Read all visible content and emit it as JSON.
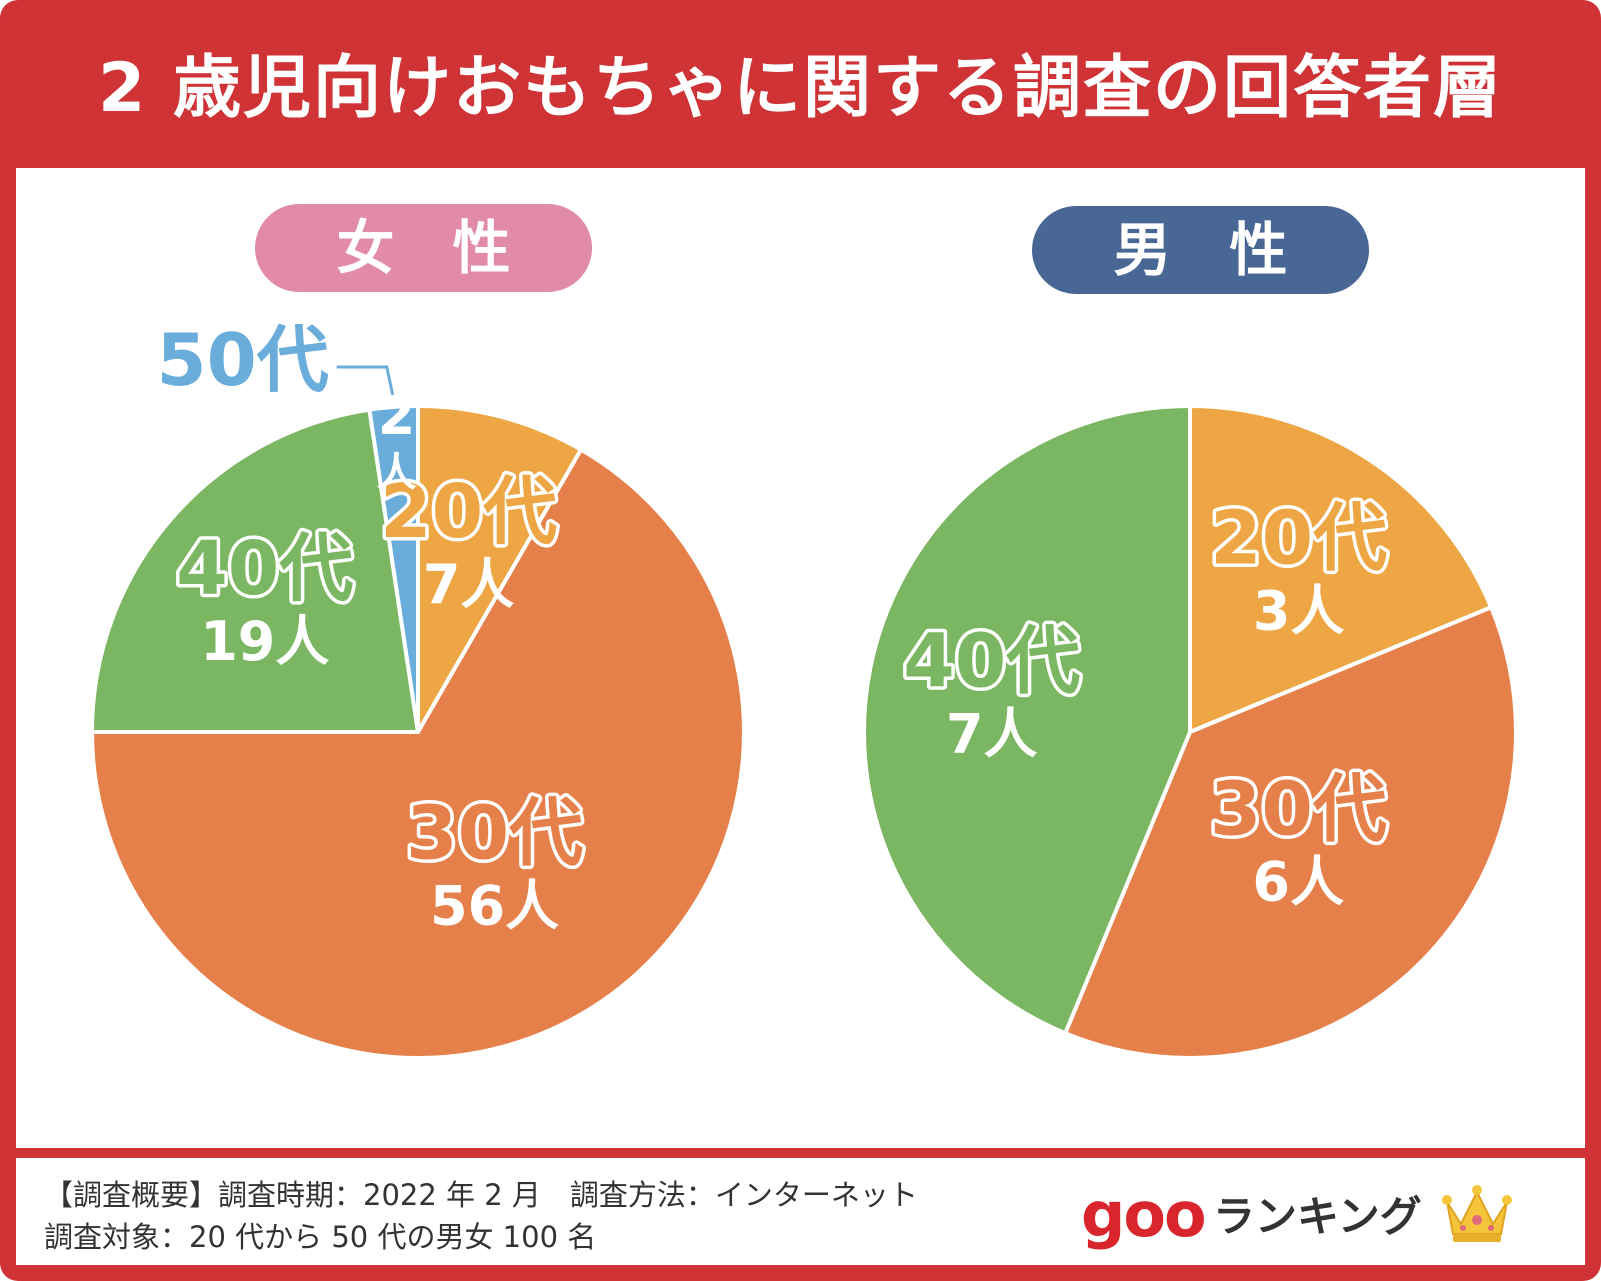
{
  "title": "2 歳児向けおもちゃに関する調査の回答者層",
  "colors": {
    "frame": "#cf3336",
    "age20": "#eda643",
    "age30": "#e5804a",
    "age40": "#7bb662",
    "age50": "#6aaddb",
    "female_pill": "#e28aa9",
    "male_pill": "#486795"
  },
  "chart_data": [
    {
      "type": "pie",
      "title": "女　性",
      "categories": [
        "20代",
        "30代",
        "40代",
        "50代"
      ],
      "values": [
        7,
        56,
        19,
        2
      ],
      "value_labels": [
        "7人",
        "56人",
        "19人",
        "2人"
      ]
    },
    {
      "type": "pie",
      "title": "男　性",
      "categories": [
        "20代",
        "30代",
        "40代"
      ],
      "values": [
        3,
        6,
        7
      ],
      "value_labels": [
        "3人",
        "6人",
        "7人"
      ]
    }
  ],
  "footer": {
    "line1": "【調査概要】調査時期：2022 年 2 月　調査方法：インターネット",
    "line2": "調査対象：20 代から 50 代の男女 100 名"
  },
  "brand": {
    "goo": "goo",
    "ranking": "ランキング",
    "icon": "crown-icon"
  }
}
